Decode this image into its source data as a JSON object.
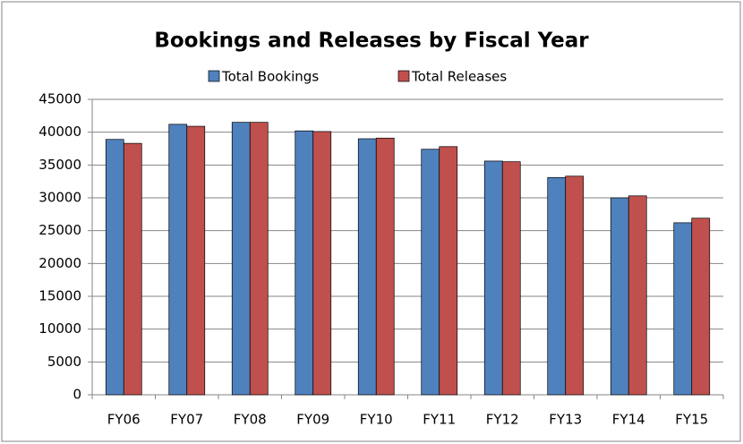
{
  "chart_data": {
    "type": "bar",
    "title": "Bookings and Releases by Fiscal Year",
    "categories": [
      "FY06",
      "FY07",
      "FY08",
      "FY09",
      "FY10",
      "FY11",
      "FY12",
      "FY13",
      "FY14",
      "FY15"
    ],
    "series": [
      {
        "name": "Total Bookings",
        "color": "#4f81bd",
        "values": [
          38900,
          41200,
          41500,
          40200,
          39000,
          37400,
          35600,
          33100,
          30000,
          26200
        ]
      },
      {
        "name": "Total Releases",
        "color": "#c0504d",
        "values": [
          38300,
          40900,
          41500,
          40100,
          39100,
          37800,
          35500,
          33300,
          30300,
          26900
        ]
      }
    ],
    "ylim": [
      0,
      45000
    ],
    "yticks": [
      0,
      5000,
      10000,
      15000,
      20000,
      25000,
      30000,
      35000,
      40000,
      45000
    ],
    "grid": true,
    "legend": "top"
  }
}
